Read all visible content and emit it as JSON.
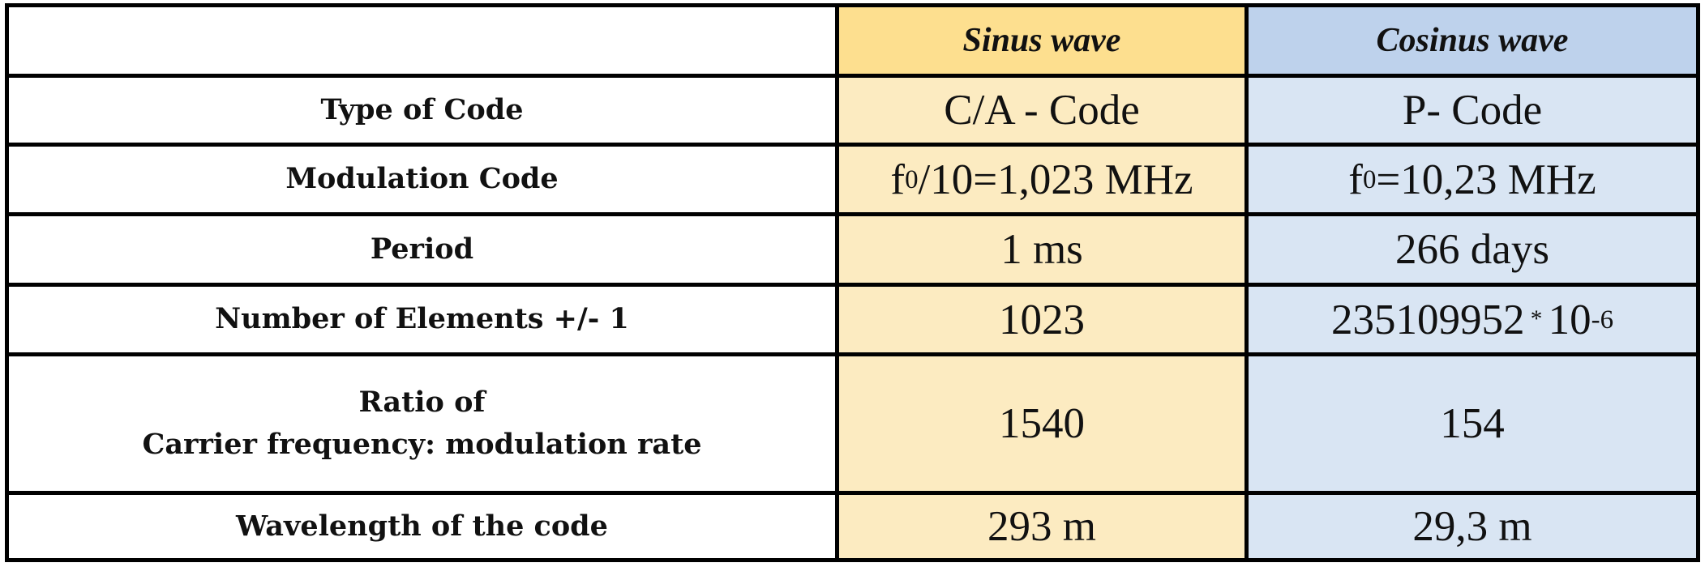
{
  "table": {
    "headers": {
      "corner": "",
      "sin": "Sinus wave",
      "cos": "Cosinus wave"
    },
    "rows": [
      {
        "label": "Type of Code",
        "sin": "C/A - Code",
        "cos": "P- Code"
      },
      {
        "label": "Modulation Code",
        "sin": {
          "pre": "f",
          "sub": "0",
          "post": "/10=1,023 MHz"
        },
        "cos": {
          "pre": "f",
          "sub": "0",
          "post": "=10,23 MHz"
        }
      },
      {
        "label": "Period",
        "sin": "1 ms",
        "cos": "266 days"
      },
      {
        "label": "Number of Elements +/- 1",
        "sin": "1023",
        "cos": {
          "base": "235109952",
          "op": "*",
          "power_base": "10",
          "exp": "-6"
        }
      },
      {
        "label_lines": [
          "Ratio of",
          "Carrier frequency: modulation rate"
        ],
        "sin": "1540",
        "cos": "154"
      },
      {
        "label": "Wavelength of the code",
        "sin": "293 m",
        "cos": "29,3 m"
      }
    ]
  },
  "colors": {
    "sin_header": "#fddf8f",
    "sin_cell": "#fcebc1",
    "cos_header": "#bed2ec",
    "cos_cell": "#d9e5f3",
    "border": "#000000"
  }
}
